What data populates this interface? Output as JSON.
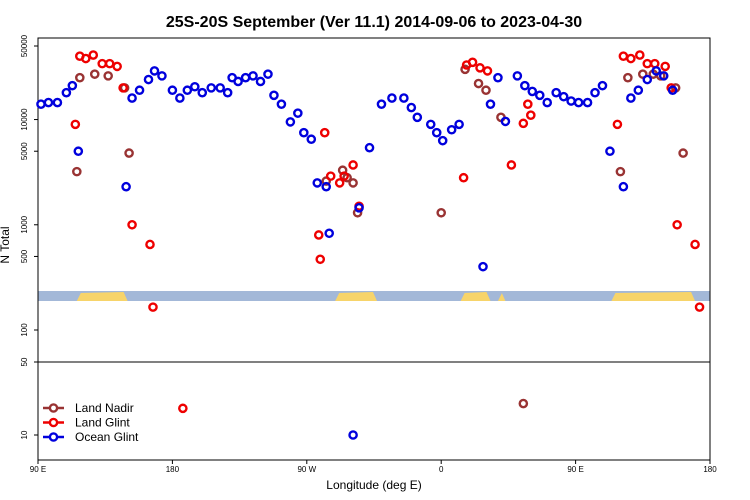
{
  "chart_data": {
    "type": "scatter",
    "title": "25S-20S September (Ver 11.1)   2014-09-06 to 2023-04-30",
    "xlabel": "Longitude (deg E)",
    "ylabel": "N Total",
    "x_ticks": [
      {
        "value": 90,
        "label": "90 E"
      },
      {
        "value": 180,
        "label": "180"
      },
      {
        "value": 270,
        "label": "90 W"
      },
      {
        "value": 360,
        "label": "0"
      },
      {
        "value": 450,
        "label": "90 E"
      },
      {
        "value": 540,
        "label": "180"
      }
    ],
    "xlim": [
      90,
      540
    ],
    "y_scale": "log",
    "y_ticks_upper": [
      "50000",
      "10000",
      "5000",
      "1000",
      "500",
      "100"
    ],
    "y_ticks_lower": [
      "50",
      "10"
    ],
    "legend_position": "bottom-left",
    "land_strip": [
      [
        116,
        150
      ],
      [
        289,
        317
      ],
      [
        373,
        393
      ],
      [
        398,
        403
      ],
      [
        474,
        530
      ]
    ],
    "series": [
      {
        "name": "Land Nadir",
        "color": "#993333",
        "points": [
          [
            116,
            3200
          ],
          [
            118,
            25000
          ],
          [
            128,
            27000
          ],
          [
            137,
            26000
          ],
          [
            148,
            20000
          ],
          [
            151,
            4800
          ],
          [
            283,
            2600
          ],
          [
            294,
            3300
          ],
          [
            297,
            2800
          ],
          [
            301,
            2500
          ],
          [
            304,
            1300
          ],
          [
            360,
            1300
          ],
          [
            376,
            30000
          ],
          [
            385,
            22000
          ],
          [
            390,
            19000
          ],
          [
            400,
            10500
          ],
          [
            415,
            20
          ],
          [
            480,
            3200
          ],
          [
            485,
            25000
          ],
          [
            495,
            27000
          ],
          [
            502,
            27000
          ],
          [
            507,
            26000
          ],
          [
            517,
            20000
          ],
          [
            522,
            4800
          ]
        ]
      },
      {
        "name": "Land Glint",
        "color": "#ee0000",
        "points": [
          [
            115,
            9000
          ],
          [
            118,
            40000
          ],
          [
            122,
            38000
          ],
          [
            127,
            41000
          ],
          [
            133,
            34000
          ],
          [
            138,
            34000
          ],
          [
            143,
            32000
          ],
          [
            147,
            20000
          ],
          [
            153,
            1000
          ],
          [
            165,
            650
          ],
          [
            167,
            165
          ],
          [
            187,
            18
          ],
          [
            278,
            800
          ],
          [
            279,
            470
          ],
          [
            282,
            7500
          ],
          [
            286,
            2900
          ],
          [
            292,
            2500
          ],
          [
            295,
            2900
          ],
          [
            301,
            3700
          ],
          [
            305,
            1500
          ],
          [
            375,
            2800
          ],
          [
            377,
            33000
          ],
          [
            381,
            35000
          ],
          [
            386,
            31000
          ],
          [
            391,
            29000
          ],
          [
            407,
            3700
          ],
          [
            415,
            9200
          ],
          [
            418,
            14000
          ],
          [
            420,
            11000
          ],
          [
            478,
            9000
          ],
          [
            482,
            40000
          ],
          [
            487,
            38000
          ],
          [
            493,
            41000
          ],
          [
            498,
            34000
          ],
          [
            503,
            34000
          ],
          [
            510,
            32000
          ],
          [
            514,
            20000
          ],
          [
            518,
            1000
          ],
          [
            530,
            650
          ],
          [
            533,
            165
          ]
        ]
      },
      {
        "name": "Ocean Glint",
        "color": "#0000dd",
        "points": [
          [
            92,
            14000
          ],
          [
            97,
            14500
          ],
          [
            103,
            14500
          ],
          [
            109,
            18000
          ],
          [
            113,
            21000
          ],
          [
            117,
            5000
          ],
          [
            149,
            2300
          ],
          [
            153,
            16000
          ],
          [
            158,
            19000
          ],
          [
            164,
            24000
          ],
          [
            168,
            29000
          ],
          [
            173,
            26000
          ],
          [
            180,
            19000
          ],
          [
            185,
            16000
          ],
          [
            190,
            19000
          ],
          [
            195,
            20500
          ],
          [
            200,
            18000
          ],
          [
            206,
            20000
          ],
          [
            212,
            20000
          ],
          [
            217,
            18000
          ],
          [
            220,
            25000
          ],
          [
            224,
            23000
          ],
          [
            229,
            25000
          ],
          [
            234,
            26000
          ],
          [
            239,
            23000
          ],
          [
            244,
            27000
          ],
          [
            248,
            17000
          ],
          [
            253,
            14000
          ],
          [
            259,
            9500
          ],
          [
            264,
            11500
          ],
          [
            268,
            7500
          ],
          [
            273,
            6500
          ],
          [
            277,
            2500
          ],
          [
            283,
            2300
          ],
          [
            285,
            830
          ],
          [
            301,
            10
          ],
          [
            305,
            1450
          ],
          [
            312,
            5400
          ],
          [
            320,
            14000
          ],
          [
            327,
            16000
          ],
          [
            335,
            16000
          ],
          [
            340,
            13000
          ],
          [
            344,
            10500
          ],
          [
            353,
            9000
          ],
          [
            357,
            7500
          ],
          [
            361,
            6300
          ],
          [
            367,
            8000
          ],
          [
            372,
            9000
          ],
          [
            388,
            400
          ],
          [
            393,
            14000
          ],
          [
            398,
            25000
          ],
          [
            403,
            9600
          ],
          [
            411,
            26000
          ],
          [
            416,
            21000
          ],
          [
            421,
            18500
          ],
          [
            426,
            17000
          ],
          [
            431,
            14500
          ],
          [
            437,
            18000
          ],
          [
            442,
            16500
          ],
          [
            447,
            15000
          ],
          [
            452,
            14500
          ],
          [
            458,
            14500
          ],
          [
            463,
            18000
          ],
          [
            468,
            21000
          ],
          [
            473,
            5000
          ],
          [
            482,
            2300
          ],
          [
            487,
            16000
          ],
          [
            492,
            19000
          ],
          [
            498,
            24000
          ],
          [
            504,
            29000
          ],
          [
            509,
            26000
          ],
          [
            515,
            19000
          ]
        ]
      }
    ]
  }
}
